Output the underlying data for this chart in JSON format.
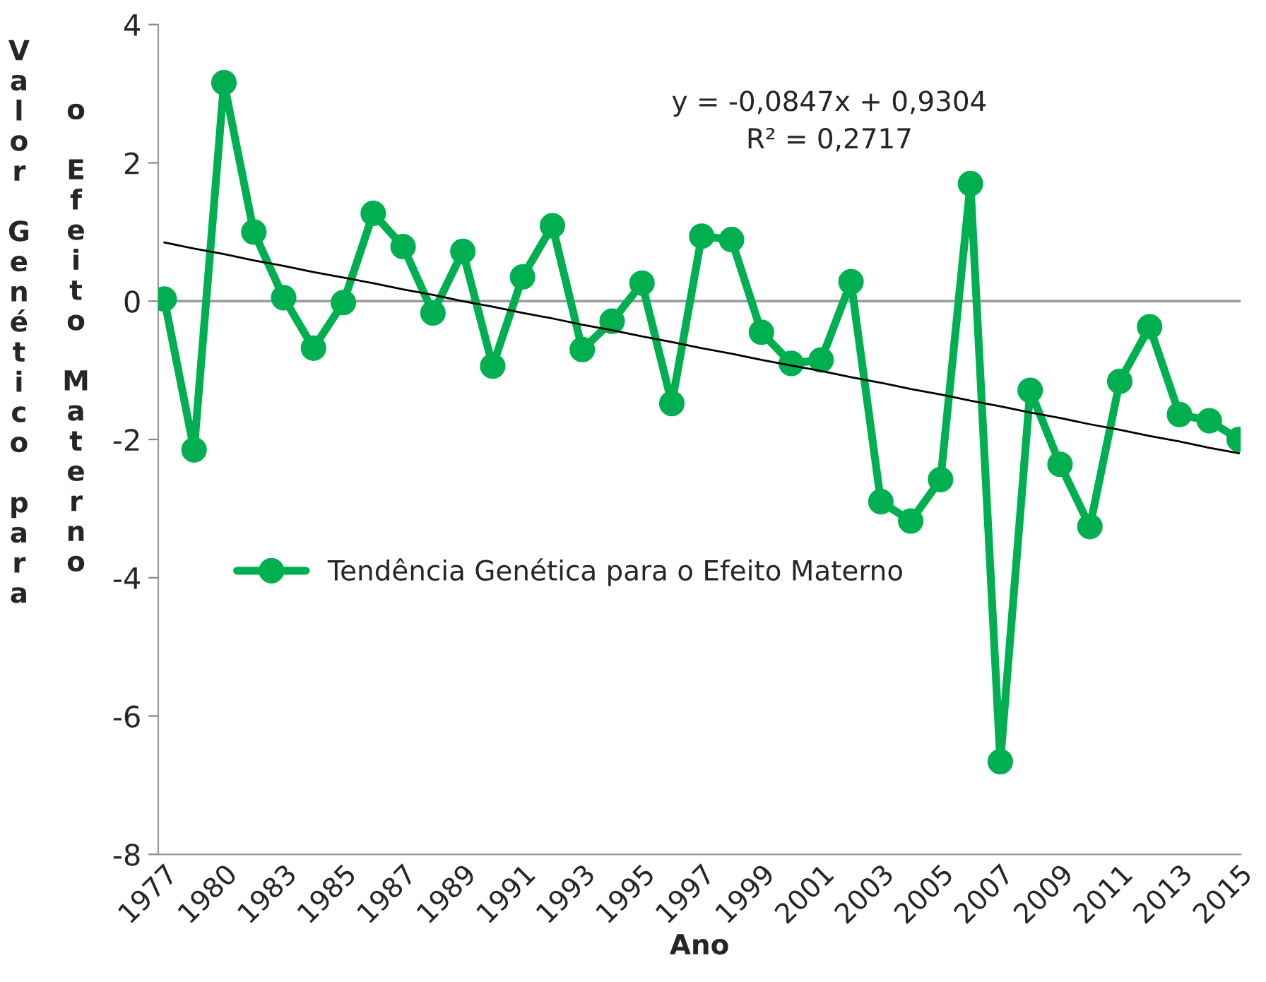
{
  "chart_data": {
    "type": "line",
    "ylabel": "Valor Genético para o Efeito Materno",
    "xlabel": "Ano",
    "categories": [
      "1977",
      null,
      "1980",
      null,
      "1983",
      null,
      "1985",
      null,
      "1987",
      null,
      "1989",
      null,
      "1991",
      null,
      "1993",
      null,
      "1995",
      null,
      "1997",
      null,
      "1999",
      null,
      "2001",
      null,
      "2003",
      null,
      "2005",
      null,
      "2007",
      null,
      "2009",
      null,
      "2011",
      null,
      "2013",
      null,
      "2015"
    ],
    "series": [
      {
        "name": "Tendência Genética para o Efeito Materno",
        "color": "#00b050",
        "marker": "circle",
        "values": [
          0.03,
          -2.15,
          3.16,
          1.0,
          0.05,
          -0.68,
          -0.02,
          1.27,
          0.79,
          -0.17,
          0.72,
          -0.94,
          0.35,
          1.09,
          -0.7,
          -0.29,
          0.26,
          -1.48,
          0.94,
          0.89,
          -0.45,
          -0.9,
          -0.85,
          0.28,
          -2.9,
          -3.18,
          -2.58,
          1.7,
          -6.66,
          -1.29,
          -2.36,
          -3.26,
          -1.16,
          -0.37,
          -1.64,
          -1.73,
          -2.0
        ]
      },
      {
        "type": "line",
        "color": "#000000",
        "marker": "none",
        "values": [
          0.85,
          0.76,
          0.68,
          0.59,
          0.51,
          0.42,
          0.34,
          0.26,
          0.17,
          0.09,
          0.0,
          -0.08,
          -0.17,
          -0.25,
          -0.34,
          -0.42,
          -0.51,
          -0.59,
          -0.68,
          -0.76,
          -0.85,
          -0.93,
          -1.01,
          -1.1,
          -1.18,
          -1.27,
          -1.35,
          -1.44,
          -1.52,
          -1.61,
          -1.69,
          -1.78,
          -1.86,
          -1.95,
          -2.03,
          -2.12,
          -2.2
        ]
      }
    ],
    "annotations": [
      "y = -0,0847x + 0,9304",
      "R² = 0,2717"
    ],
    "ylim": [
      -8,
      4
    ],
    "yticks": [
      -8,
      -6,
      -4,
      -2,
      0,
      2,
      4
    ],
    "ref_lines": [
      {
        "axis": "y",
        "value": 0,
        "color": "#999999"
      }
    ],
    "grid": false,
    "legend": "left"
  }
}
